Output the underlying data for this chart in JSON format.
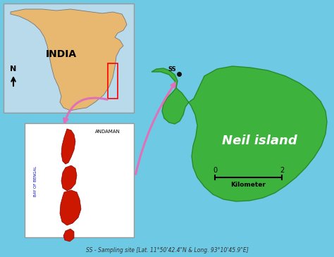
{
  "background_color": "#6ecae4",
  "neil_island_color": "#3db33d",
  "neil_island_outline": "#2a8a2a",
  "india_map_bg": "#e8b870",
  "india_sea_color": "#b8daea",
  "india_border_color": "#cccccc",
  "inset_andaman_bg": "#ffffff",
  "andaman_land_color": "#cc1800",
  "andaman_outline": "#880000",
  "title_text": "Neil island",
  "label_ss": "SS",
  "scale_label": "Kilometer",
  "scale_0": "0",
  "scale_2": "2",
  "caption": "SS - Sampling site [Lat. 11°50'42.4\"N & Long. 93°10'45.9\"E]",
  "india_label": "INDIA",
  "north_arrow_label": "N",
  "andaman_label": "ANDAMAN",
  "bay_label": "BAY OF BENGAL",
  "arrow_color": "#e070b8",
  "ss_dot_color": "#111111",
  "fig_width": 4.74,
  "fig_height": 3.65,
  "dpi": 100
}
